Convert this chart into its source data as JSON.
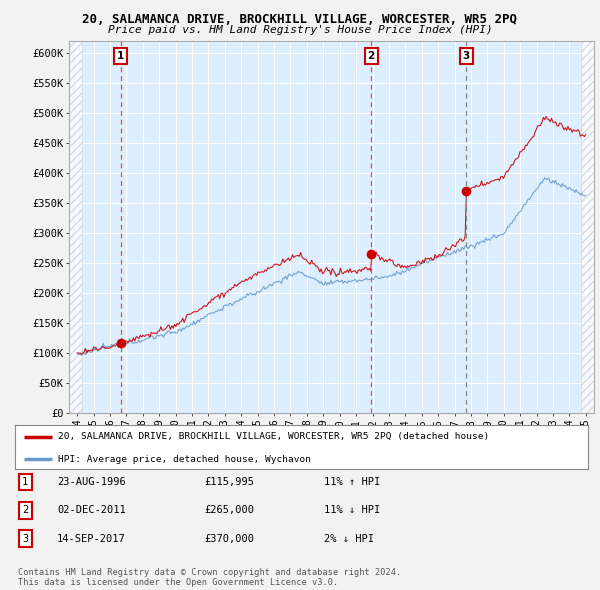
{
  "title": "20, SALAMANCA DRIVE, BROCKHILL VILLAGE, WORCESTER, WR5 2PQ",
  "subtitle": "Price paid vs. HM Land Registry's House Price Index (HPI)",
  "ylim": [
    0,
    620000
  ],
  "yticks": [
    0,
    50000,
    100000,
    150000,
    200000,
    250000,
    300000,
    350000,
    400000,
    450000,
    500000,
    550000,
    600000
  ],
  "ytick_labels": [
    "£0",
    "£50K",
    "£100K",
    "£150K",
    "£200K",
    "£250K",
    "£300K",
    "£350K",
    "£400K",
    "£450K",
    "£500K",
    "£550K",
    "£600K"
  ],
  "bg_color": "#f2f2f2",
  "plot_bg_color": "#ddeeff",
  "red_line_color": "#cc0000",
  "blue_line_color": "#6699cc",
  "sale1_year": 1996.65,
  "sale1_price": 115995,
  "sale2_year": 2011.92,
  "sale2_price": 265000,
  "sale3_year": 2017.71,
  "sale3_price": 370000,
  "vline1_color": "#ff4444",
  "vline2_color": "#ff4444",
  "vline3_color": "#888888",
  "legend_red_label": "20, SALAMANCA DRIVE, BROCKHILL VILLAGE, WORCESTER, WR5 2PQ (detached house)",
  "legend_blue_label": "HPI: Average price, detached house, Wychavon",
  "table_rows": [
    {
      "num": "1",
      "date": "23-AUG-1996",
      "price": "£115,995",
      "hpi": "11% ↑ HPI"
    },
    {
      "num": "2",
      "date": "02-DEC-2011",
      "price": "£265,000",
      "hpi": "11% ↓ HPI"
    },
    {
      "num": "3",
      "date": "14-SEP-2017",
      "price": "£370,000",
      "hpi": "2% ↓ HPI"
    }
  ],
  "footnote": "Contains HM Land Registry data © Crown copyright and database right 2024.\nThis data is licensed under the Open Government Licence v3.0.",
  "xstart": 1994,
  "xend": 2025
}
